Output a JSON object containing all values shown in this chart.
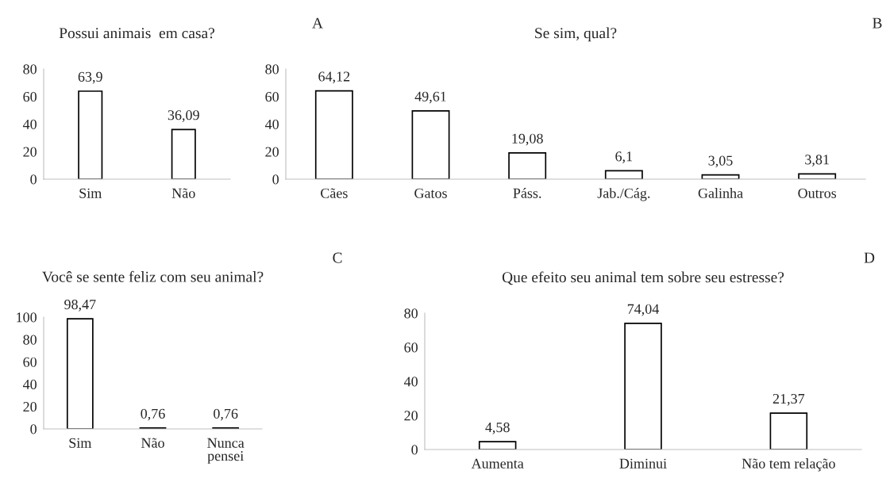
{
  "chart_data": [
    {
      "type": "bar",
      "title": "Possui animais  em casa?",
      "annotations": [
        "A"
      ],
      "categories": [
        "Sim",
        "Não"
      ],
      "values": [
        63.9,
        36.09
      ],
      "value_labels": [
        "63,9",
        "36,09"
      ],
      "color": "#ffffff",
      "ylim": [
        0,
        80
      ],
      "yticks": [
        0,
        20,
        40,
        60,
        80
      ],
      "grid": false,
      "legend": false
    },
    {
      "type": "bar",
      "title": "Se sim, qual?",
      "annotations": [
        "B"
      ],
      "categories": [
        "Cães",
        "Gatos",
        "Páss.",
        "Jab./Cág.",
        "Galinha",
        "Outros"
      ],
      "values": [
        64.12,
        49.61,
        19.08,
        6.1,
        3.05,
        3.81
      ],
      "value_labels": [
        "64,12",
        "49,61",
        "19,08",
        "6,1",
        "3,05",
        "3,81"
      ],
      "color": "#ffffff",
      "ylim": [
        0,
        80
      ],
      "yticks": [
        0,
        20,
        40,
        60,
        80
      ],
      "grid": false,
      "legend": false
    },
    {
      "type": "bar",
      "title": "Você se sente feliz com seu animal?",
      "annotations": [
        "C"
      ],
      "categories": [
        "Sim",
        "Não",
        "Nunca\npensei"
      ],
      "values": [
        98.47,
        0.76,
        0.76
      ],
      "value_labels": [
        "98,47",
        "0,76",
        "0,76"
      ],
      "color": "#ffffff",
      "ylim": [
        0,
        100
      ],
      "yticks": [
        0,
        20,
        40,
        60,
        80,
        100
      ],
      "grid": false,
      "legend": false
    },
    {
      "type": "bar",
      "title": "Que efeito seu animal tem sobre seu estresse?",
      "annotations": [
        "D"
      ],
      "categories": [
        "Aumenta",
        "Diminui",
        "Não tem relação"
      ],
      "values": [
        4.58,
        74.04,
        21.37
      ],
      "value_labels": [
        "4,58",
        "74,04",
        "21,37"
      ],
      "color": "#ffffff",
      "ylim": [
        0,
        80
      ],
      "yticks": [
        0,
        20,
        40,
        60,
        80
      ],
      "grid": false,
      "legend": false
    }
  ]
}
